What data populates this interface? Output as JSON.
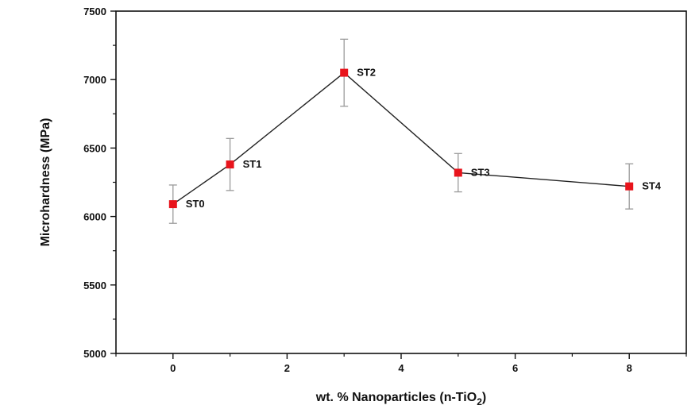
{
  "chart_data": {
    "type": "scatter",
    "title": "",
    "xlabel": "wt. % Nanoparticles (n-TiO",
    "xlabel_sub": "2",
    "xlabel_end": ")",
    "ylabel": "Microhardness (MPa)",
    "xlim": [
      -1,
      9
    ],
    "ylim": [
      5000,
      7500
    ],
    "xticks": [
      0,
      2,
      4,
      6,
      8
    ],
    "yticks": [
      5000,
      5500,
      6000,
      6500,
      7000,
      7500
    ],
    "grid": false,
    "legend": "none",
    "series": [
      {
        "name": "Microhardness",
        "x": [
          0,
          1,
          3,
          5,
          8
        ],
        "y": [
          6090,
          6380,
          7050,
          6320,
          6220
        ],
        "error": [
          140,
          190,
          245,
          140,
          165
        ],
        "labels": [
          "ST0",
          "ST1",
          "ST2",
          "ST3",
          "ST4"
        ]
      }
    ],
    "colors": {
      "marker": "#e8141c",
      "line": "#222222",
      "errorbar": "#9a9a9a",
      "axis": "#111111"
    }
  }
}
